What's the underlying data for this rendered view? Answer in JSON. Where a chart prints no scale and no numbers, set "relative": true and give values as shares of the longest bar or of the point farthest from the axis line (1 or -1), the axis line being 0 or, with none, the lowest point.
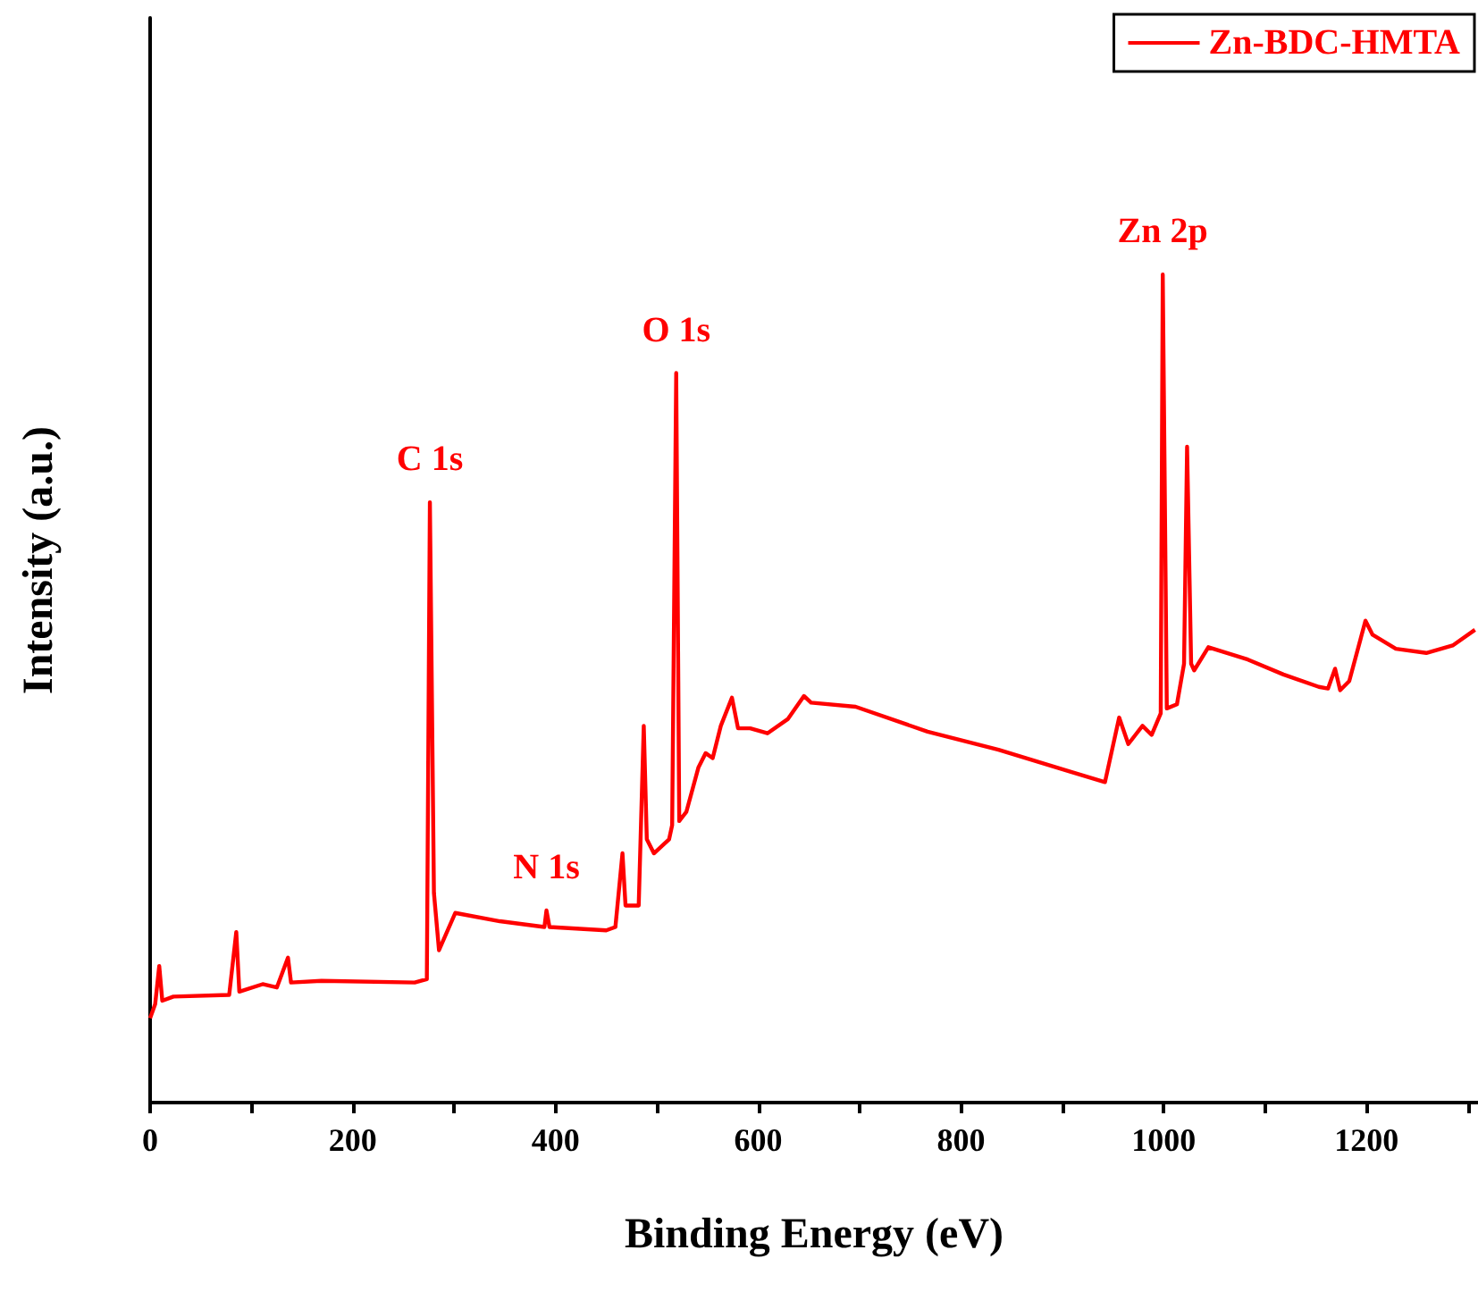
{
  "chart_data": {
    "type": "line",
    "xlabel": "Binding Energy (eV)",
    "ylabel": "Intensity (a.u.)",
    "relative": true,
    "xlim": [
      0,
      1310
    ],
    "xticks": [
      0,
      {
        "value": 100,
        "label": null
      },
      200,
      {
        "value": 300,
        "label": null
      },
      400,
      {
        "value": 500,
        "label": null
      },
      600,
      {
        "value": 700,
        "label": null
      },
      800,
      {
        "value": 900,
        "label": null
      },
      1000,
      {
        "value": 1100,
        "label": null
      },
      1200,
      {
        "value": 1300,
        "label": null
      }
    ],
    "x": [
      0,
      5,
      9,
      12,
      23,
      78,
      85,
      88,
      111,
      125,
      136,
      139,
      169,
      261,
      273,
      276,
      280,
      285,
      301,
      345,
      389,
      391,
      394,
      450,
      459,
      466,
      469,
      482,
      487,
      490,
      497,
      512,
      515,
      519,
      522,
      529,
      541,
      548,
      555,
      563,
      574,
      580,
      592,
      609,
      629,
      645,
      652,
      696,
      767,
      837,
      907,
      942,
      956,
      965,
      979,
      988,
      997,
      999,
      1003,
      1013,
      1020,
      1023,
      1027,
      1030,
      1044,
      1083,
      1118,
      1153,
      1162,
      1169,
      1174,
      1183,
      1199,
      1206,
      1229,
      1259,
      1285,
      1307
    ],
    "series": [
      {
        "name": "Zn-BDC-HMTA",
        "color": "#ff0000",
        "values": [
          0.102,
          0.119,
          0.165,
          0.123,
          0.128,
          0.13,
          0.206,
          0.134,
          0.143,
          0.139,
          0.175,
          0.145,
          0.147,
          0.145,
          0.149,
          0.725,
          0.253,
          0.184,
          0.229,
          0.219,
          0.212,
          0.232,
          0.212,
          0.208,
          0.212,
          0.301,
          0.238,
          0.238,
          0.455,
          0.318,
          0.301,
          0.318,
          0.335,
          0.881,
          0.34,
          0.351,
          0.405,
          0.422,
          0.416,
          0.455,
          0.489,
          0.452,
          0.452,
          0.446,
          0.463,
          0.491,
          0.483,
          0.478,
          0.448,
          0.426,
          0.4,
          0.387,
          0.465,
          0.433,
          0.455,
          0.444,
          0.47,
          1.0,
          0.476,
          0.481,
          0.53,
          0.792,
          0.53,
          0.522,
          0.55,
          0.535,
          0.517,
          0.502,
          0.5,
          0.524,
          0.498,
          0.509,
          0.582,
          0.565,
          0.548,
          0.543,
          0.552,
          0.571
        ]
      }
    ],
    "annotations": [
      {
        "text": "C 1s",
        "x": 276,
        "y": 0.725
      },
      {
        "text": "N 1s",
        "x": 391,
        "y": 0.232
      },
      {
        "text": "O 1s",
        "x": 519,
        "y": 0.881
      },
      {
        "text": "Zn 2p",
        "x": 999,
        "y": 1.0
      }
    ],
    "legend": "top right",
    "marker": "none",
    "line_style": "solid",
    "grid": false
  }
}
